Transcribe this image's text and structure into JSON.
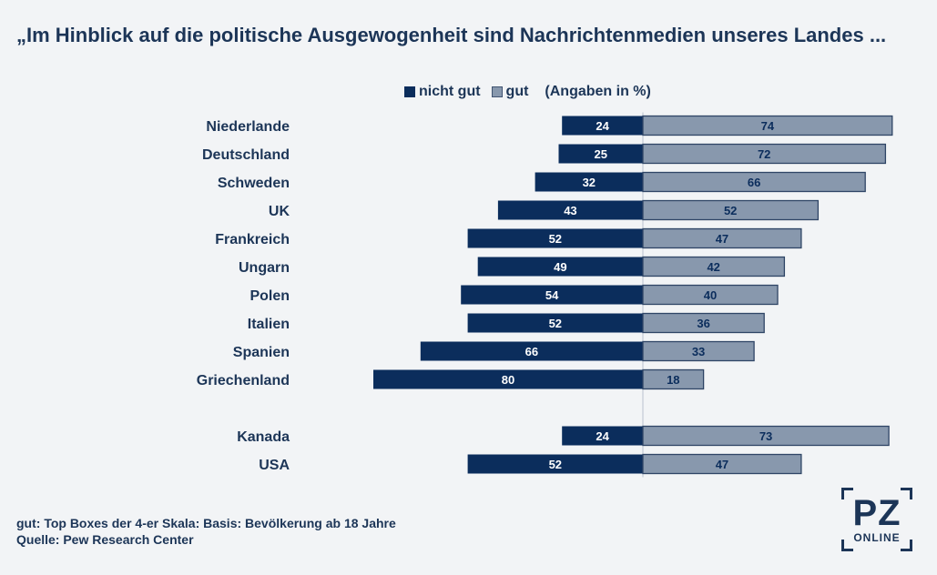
{
  "title": "„Im Hinblick auf die politische Ausgewogenheit sind Nachrichtenmedien unseres Landes ...",
  "legend": {
    "not_good": "nicht gut",
    "good": "gut",
    "unit": "(Angaben in %)"
  },
  "footer": {
    "note": "gut: Top Boxes der 4-er Skala: Basis: Bevölkerung ab 18 Jahre",
    "source": "Quelle: Pew Research Center"
  },
  "logo": {
    "main": "PZ",
    "sub": "ONLINE"
  },
  "colors": {
    "not_good": "#0b2d5c",
    "good": "#8898ad",
    "text": "#1c3557",
    "background": "#f2f4f6"
  },
  "chart_data": {
    "type": "bar",
    "orientation": "horizontal-diverging",
    "categories": [
      "Niederlande",
      "Deutschland",
      "Schweden",
      "UK",
      "Frankreich",
      "Ungarn",
      "Polen",
      "Italien",
      "Spanien",
      "Griechenland",
      "Kanada",
      "USA"
    ],
    "series": [
      {
        "name": "nicht gut",
        "values": [
          24,
          25,
          32,
          43,
          52,
          49,
          54,
          52,
          66,
          80,
          24,
          52
        ]
      },
      {
        "name": "gut",
        "values": [
          74,
          72,
          66,
          52,
          47,
          42,
          40,
          36,
          33,
          18,
          73,
          47
        ]
      }
    ],
    "groups": [
      [
        "Niederlande",
        "Deutschland",
        "Schweden",
        "UK",
        "Frankreich",
        "Ungarn",
        "Polen",
        "Italien",
        "Spanien",
        "Griechenland"
      ],
      [
        "Kanada",
        "USA"
      ]
    ],
    "grid": false,
    "legend_position": "top"
  }
}
